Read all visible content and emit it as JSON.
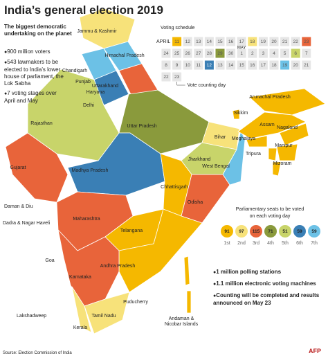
{
  "title": "India’s general election 2019",
  "intro": "The biggest democratic undertaking on the planet",
  "facts": [
    "900 million voters",
    "543 lawmakers to be elected to India’s lower house of parliament, the Lok Sabha",
    "7 voting stages over April and May"
  ],
  "schedule": {
    "title": "Voting schedule",
    "months": [
      {
        "name": "APRIL",
        "days": [
          {
            "day": 11,
            "color": "#f5b800"
          },
          {
            "day": 12
          },
          {
            "day": 13
          },
          {
            "day": 14
          },
          {
            "day": 15
          },
          {
            "day": 16
          },
          {
            "day": 17
          },
          {
            "day": 18,
            "color": "#f7e27a"
          },
          {
            "day": 19
          },
          {
            "day": 20
          },
          {
            "day": 21
          },
          {
            "day": 22
          },
          {
            "day": 23,
            "color": "#e8643a"
          },
          {
            "day": 24
          },
          {
            "day": 25
          },
          {
            "day": 26
          },
          {
            "day": 27
          },
          {
            "day": 28
          },
          {
            "day": 29,
            "color": "#8a9a3c"
          },
          {
            "day": 30
          }
        ]
      },
      {
        "name": "MAY",
        "days": [
          {
            "day": 1
          },
          {
            "day": 2
          },
          {
            "day": 3
          },
          {
            "day": 4
          },
          {
            "day": 5
          },
          {
            "day": 6,
            "color": "#c8d46a"
          },
          {
            "day": 7
          },
          {
            "day": 8
          },
          {
            "day": 9
          },
          {
            "day": 10
          },
          {
            "day": 11
          },
          {
            "day": 12,
            "color": "#3a7fb5"
          },
          {
            "day": 13
          },
          {
            "day": 14
          },
          {
            "day": 15
          },
          {
            "day": 16
          },
          {
            "day": 17
          },
          {
            "day": 18
          },
          {
            "day": 19,
            "color": "#6cc1e6"
          },
          {
            "day": 20
          },
          {
            "day": 21
          },
          {
            "day": 22
          },
          {
            "day": 23
          }
        ]
      }
    ],
    "note": "Vote counting day"
  },
  "seats": {
    "title": "Parliamentary seats to be voted on each voting day",
    "phases": [
      {
        "label": "1st",
        "seats": 91,
        "color": "#f5b800"
      },
      {
        "label": "2nd",
        "seats": 97,
        "color": "#f7e27a"
      },
      {
        "label": "3rd",
        "seats": 115,
        "color": "#e8643a"
      },
      {
        "label": "4th",
        "seats": 71,
        "color": "#8a9a3c"
      },
      {
        "label": "5th",
        "seats": 51,
        "color": "#c8d46a"
      },
      {
        "label": "6th",
        "seats": 59,
        "color": "#3a7fb5"
      },
      {
        "label": "7th",
        "seats": 59,
        "color": "#6cc1e6"
      }
    ]
  },
  "highlights": [
    "1 million polling stations",
    "1.1 million electronic voting machines",
    "Counting will be completed and results announced on May 23"
  ],
  "map_labels": [
    "Jammu & Kashmir",
    "Himachal Pradesh",
    "Chandigarh",
    "Punjab",
    "Haryana",
    "Delhi",
    "Uttarakhand",
    "Rajasthan",
    "Uttar Pradesh",
    "Sikkim",
    "Arunachal Pradesh",
    "Assam",
    "Nagaland",
    "Meghalaya",
    "Manipur",
    "Bihar",
    "Tripura",
    "Mizoram",
    "Gujarat",
    "Madhya Pradesh",
    "Jharkhand",
    "West Bengal",
    "Chhattisgarh",
    "Daman & Diu",
    "Dadra & Nagar Haveli",
    "Maharashtra",
    "Odisha",
    "Telangana",
    "Goa",
    "Andhra Pradesh",
    "Karnataka",
    "Lakshadweep",
    "Puducherry",
    "Tamil Nadu",
    "Kerala",
    "Andaman & Nicobar Islands"
  ],
  "source": "Source: Election Commission of India",
  "credit": "AFP"
}
